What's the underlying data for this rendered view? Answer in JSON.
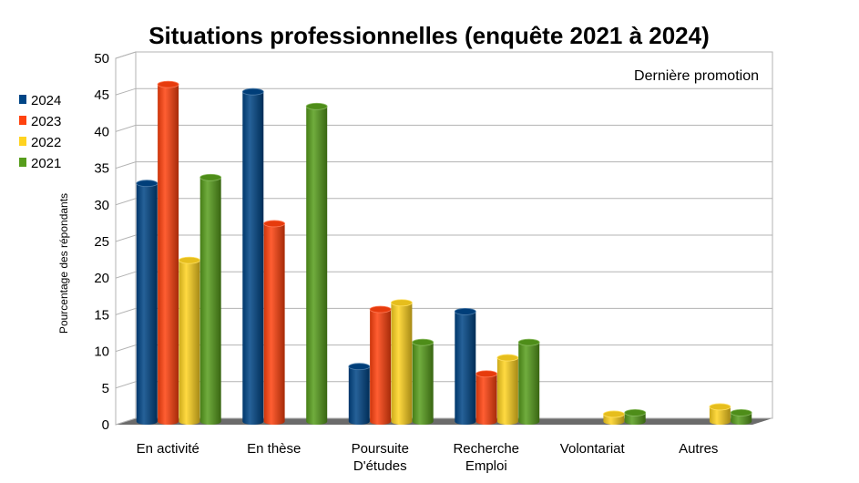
{
  "chart_data": {
    "type": "bar",
    "title": "Situations professionnelles (enquête 2021 à 2024)",
    "ylabel": "Pourcentage des répondants",
    "xlabel": "",
    "annotation": "Dernière promotion",
    "ylim": [
      0,
      50
    ],
    "yticks": [
      "0",
      "5",
      "10",
      "15",
      "20",
      "25",
      "30",
      "35",
      "40",
      "45",
      "50"
    ],
    "grid": true,
    "legend_position": "left",
    "categories": [
      [
        "En activité"
      ],
      [
        "En thèse"
      ],
      [
        "Poursuite",
        "D'études"
      ],
      [
        "Recherche",
        "Emploi"
      ],
      [
        "Volontariat"
      ],
      [
        "Autres"
      ]
    ],
    "series": [
      {
        "name": "2024",
        "color": "#004586",
        "values": [
          32.5,
          45,
          7.5,
          15,
          0,
          0
        ]
      },
      {
        "name": "2023",
        "color": "#ff420e",
        "values": [
          46,
          27,
          15.3,
          6.5,
          0,
          0
        ]
      },
      {
        "name": "2022",
        "color": "#ffd320",
        "values": [
          22,
          0,
          16.2,
          8.7,
          1,
          2
        ]
      },
      {
        "name": "2021",
        "color": "#579d1c",
        "values": [
          33.3,
          43,
          10.8,
          10.8,
          1.2,
          1.2
        ]
      }
    ]
  }
}
